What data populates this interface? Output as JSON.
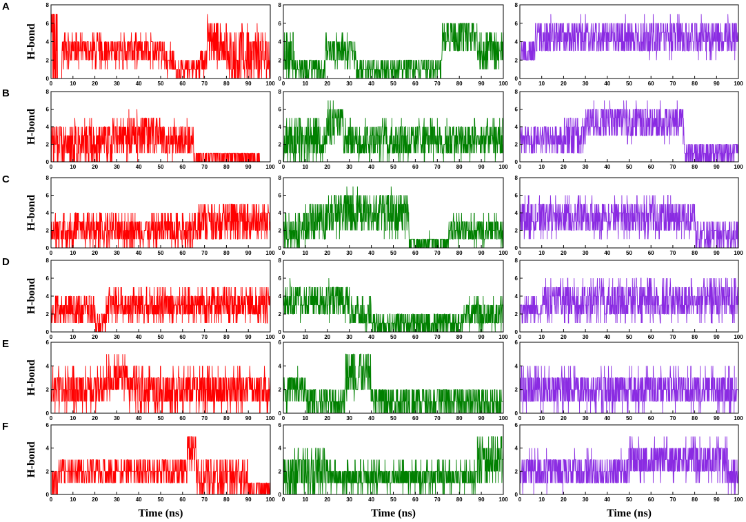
{
  "figure": {
    "row_labels": [
      "A",
      "B",
      "C",
      "D",
      "E",
      "F"
    ],
    "ylabel": "H-bond",
    "xlabel": "Time (ns)",
    "x_ticks": [
      "0",
      "10",
      "20",
      "30",
      "40",
      "50",
      "60",
      "70",
      "80",
      "90",
      "100"
    ],
    "column_colors": [
      "#ff0000",
      "#008000",
      "#8a2be2"
    ]
  },
  "chart_data": [
    {
      "panel": "A-1",
      "type": "line",
      "color": "#ff0000",
      "xlim": [
        0,
        100
      ],
      "ylim": [
        0,
        8
      ],
      "yticks": [
        0,
        2,
        4,
        6,
        8
      ],
      "segments": [
        [
          0,
          3,
          2,
          5
        ],
        [
          5,
          52,
          3,
          1
        ],
        [
          52,
          56,
          2,
          1
        ],
        [
          56,
          68,
          1,
          0.6
        ],
        [
          68,
          71,
          2,
          1
        ],
        [
          71,
          80,
          4,
          1.5
        ],
        [
          80,
          100,
          2.5,
          1.8
        ]
      ]
    },
    {
      "panel": "A-2",
      "type": "line",
      "color": "#008000",
      "xlim": [
        0,
        100
      ],
      "ylim": [
        0,
        8
      ],
      "yticks": [
        0,
        2,
        4,
        6,
        8
      ],
      "segments": [
        [
          0,
          5,
          2.5,
          1.5
        ],
        [
          5,
          19,
          1,
          0.7
        ],
        [
          19,
          33,
          3,
          1
        ],
        [
          33,
          72,
          1,
          0.6
        ],
        [
          72,
          88,
          4.5,
          1.2
        ],
        [
          88,
          100,
          3,
          1.3
        ]
      ]
    },
    {
      "panel": "A-3",
      "type": "line",
      "color": "#8a2be2",
      "xlim": [
        0,
        100
      ],
      "ylim": [
        0,
        8
      ],
      "yticks": [
        0,
        2,
        4,
        6,
        8
      ],
      "segments": [
        [
          0,
          7,
          3,
          0.8
        ],
        [
          7,
          100,
          4.5,
          1.2
        ]
      ]
    },
    {
      "panel": "B-1",
      "type": "line",
      "color": "#ff0000",
      "xlim": [
        0,
        100
      ],
      "ylim": [
        0,
        8
      ],
      "yticks": [
        0,
        2,
        4,
        6,
        8
      ],
      "segments": [
        [
          0,
          28,
          2,
          1.5
        ],
        [
          28,
          50,
          3,
          1.5
        ],
        [
          50,
          65,
          2.5,
          1.2
        ],
        [
          65,
          95,
          0.5,
          0.5
        ]
      ]
    },
    {
      "panel": "B-2",
      "type": "line",
      "color": "#008000",
      "xlim": [
        0,
        100
      ],
      "ylim": [
        0,
        8
      ],
      "yticks": [
        0,
        2,
        4,
        6,
        8
      ],
      "segments": [
        [
          0,
          20,
          2.5,
          1.5
        ],
        [
          20,
          27,
          4.5,
          1.5
        ],
        [
          27,
          100,
          2.5,
          1.3
        ]
      ]
    },
    {
      "panel": "B-3",
      "type": "line",
      "color": "#8a2be2",
      "xlim": [
        0,
        100
      ],
      "ylim": [
        0,
        8
      ],
      "yticks": [
        0,
        2,
        4,
        6,
        8
      ],
      "segments": [
        [
          0,
          20,
          2.5,
          1
        ],
        [
          20,
          30,
          3,
          1.3
        ],
        [
          30,
          75,
          4.5,
          1.2
        ],
        [
          75,
          100,
          1,
          0.8
        ]
      ]
    },
    {
      "panel": "C-1",
      "type": "line",
      "color": "#ff0000",
      "xlim": [
        0,
        100
      ],
      "ylim": [
        0,
        8
      ],
      "yticks": [
        0,
        2,
        4,
        6,
        8
      ],
      "segments": [
        [
          0,
          65,
          2,
          1.2
        ],
        [
          65,
          100,
          3,
          1.3
        ]
      ]
    },
    {
      "panel": "C-2",
      "type": "line",
      "color": "#008000",
      "xlim": [
        0,
        100
      ],
      "ylim": [
        0,
        8
      ],
      "yticks": [
        0,
        2,
        4,
        6,
        8
      ],
      "segments": [
        [
          0,
          10,
          2,
          1.3
        ],
        [
          10,
          20,
          3,
          1.3
        ],
        [
          20,
          57,
          4,
          1.5
        ],
        [
          57,
          75,
          0.5,
          0.6
        ],
        [
          75,
          100,
          2,
          1
        ]
      ]
    },
    {
      "panel": "C-3",
      "type": "line",
      "color": "#8a2be2",
      "xlim": [
        0,
        100
      ],
      "ylim": [
        0,
        8
      ],
      "yticks": [
        0,
        2,
        4,
        6,
        8
      ],
      "segments": [
        [
          0,
          80,
          3.5,
          1.3
        ],
        [
          80,
          100,
          1.5,
          1
        ]
      ]
    },
    {
      "panel": "D-1",
      "type": "line",
      "color": "#ff0000",
      "xlim": [
        0,
        100
      ],
      "ylim": [
        0,
        8
      ],
      "yticks": [
        0,
        2,
        4,
        6,
        8
      ],
      "segments": [
        [
          0,
          20,
          2.5,
          1
        ],
        [
          20,
          25,
          1,
          0.8
        ],
        [
          25,
          100,
          3,
          1.1
        ]
      ]
    },
    {
      "panel": "D-2",
      "type": "line",
      "color": "#008000",
      "xlim": [
        0,
        100
      ],
      "ylim": [
        0,
        8
      ],
      "yticks": [
        0,
        2,
        4,
        6,
        8
      ],
      "segments": [
        [
          0,
          30,
          3.5,
          1.2
        ],
        [
          30,
          40,
          2,
          1
        ],
        [
          40,
          82,
          1,
          0.7
        ],
        [
          82,
          100,
          2,
          1
        ]
      ]
    },
    {
      "panel": "D-3",
      "type": "line",
      "color": "#8a2be2",
      "xlim": [
        0,
        100
      ],
      "ylim": [
        0,
        8
      ],
      "yticks": [
        0,
        2,
        4,
        6,
        8
      ],
      "segments": [
        [
          0,
          10,
          2.5,
          0.8
        ],
        [
          10,
          100,
          3.5,
          1.4
        ]
      ]
    },
    {
      "panel": "E-1",
      "type": "line",
      "color": "#ff0000",
      "xlim": [
        0,
        100
      ],
      "ylim": [
        0,
        6
      ],
      "yticks": [
        0,
        2,
        4,
        6
      ],
      "segments": [
        [
          0,
          25,
          2,
          1
        ],
        [
          25,
          35,
          3,
          1
        ],
        [
          35,
          100,
          2,
          1
        ]
      ]
    },
    {
      "panel": "E-2",
      "type": "line",
      "color": "#008000",
      "xlim": [
        0,
        100
      ],
      "ylim": [
        0,
        6
      ],
      "yticks": [
        0,
        2,
        4,
        6
      ],
      "segments": [
        [
          0,
          10,
          2,
          0.9
        ],
        [
          10,
          28,
          1,
          0.8
        ],
        [
          28,
          40,
          3.5,
          1.3
        ],
        [
          40,
          100,
          1,
          0.8
        ]
      ]
    },
    {
      "panel": "E-3",
      "type": "line",
      "color": "#8a2be2",
      "xlim": [
        0,
        100
      ],
      "ylim": [
        0,
        6
      ],
      "yticks": [
        0,
        2,
        4,
        6
      ],
      "segments": [
        [
          0,
          100,
          2,
          1
        ]
      ]
    },
    {
      "panel": "F-1",
      "type": "line",
      "color": "#ff0000",
      "xlim": [
        0,
        100
      ],
      "ylim": [
        0,
        6
      ],
      "yticks": [
        0,
        2,
        4,
        6
      ],
      "segments": [
        [
          0,
          3,
          0.8,
          0.8
        ],
        [
          3,
          62,
          2,
          0.6
        ],
        [
          62,
          66,
          4,
          1
        ],
        [
          66,
          90,
          1.5,
          1
        ],
        [
          90,
          100,
          0.5,
          0.5
        ]
      ]
    },
    {
      "panel": "F-2",
      "type": "line",
      "color": "#008000",
      "xlim": [
        0,
        100
      ],
      "ylim": [
        0,
        6
      ],
      "yticks": [
        0,
        2,
        4,
        6
      ],
      "segments": [
        [
          0,
          5,
          1.5,
          1
        ],
        [
          5,
          20,
          2,
          1.2
        ],
        [
          20,
          88,
          1.5,
          0.7
        ],
        [
          88,
          100,
          3,
          1.2
        ]
      ]
    },
    {
      "panel": "F-3",
      "type": "line",
      "color": "#8a2be2",
      "xlim": [
        0,
        100
      ],
      "ylim": [
        0,
        6
      ],
      "yticks": [
        0,
        2,
        4,
        6
      ],
      "segments": [
        [
          0,
          10,
          2,
          1
        ],
        [
          10,
          50,
          2,
          0.9
        ],
        [
          50,
          95,
          3,
          1
        ],
        [
          95,
          100,
          1.5,
          0.8
        ]
      ]
    }
  ]
}
